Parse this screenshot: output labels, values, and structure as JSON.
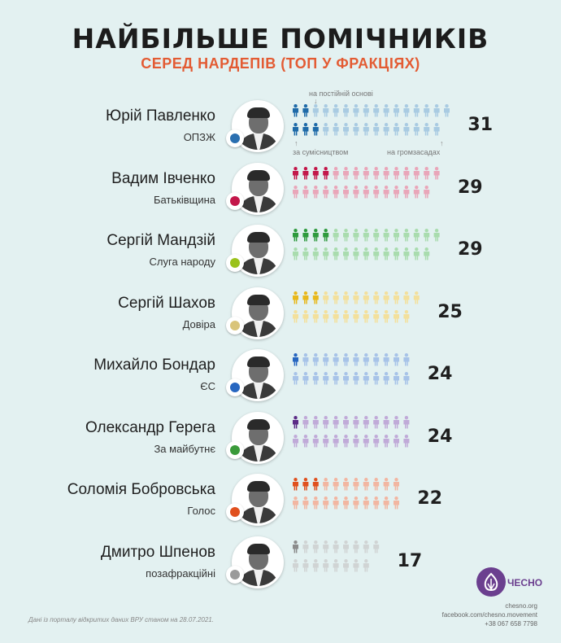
{
  "header": {
    "title": "НАЙБІЛЬШЕ ПОМІЧНИКІВ",
    "subtitle": "СЕРЕД НАРДЕПІВ (ТОП У ФРАКЦІЯХ)"
  },
  "legend": {
    "permanent": "на постійній основі",
    "part_time": "за сумісництвом",
    "voluntary": "на громзасадах"
  },
  "chart_data": {
    "type": "pictograph",
    "title": "НАЙБІЛЬШЕ ПОМІЧНИКІВ",
    "subtitle": "СЕРЕД НАРДЕПІВ (ТОП У ФРАКЦІЯХ)",
    "rows": [
      {
        "name": "Юрій Павленко",
        "faction": "ОПЗЖ",
        "total": 31,
        "permanent": 2,
        "part_time": 3,
        "color": "#1e6aa8",
        "light": "#a9cbe2",
        "badge_color": "#2a6fb0"
      },
      {
        "name": "Вадим Івченко",
        "faction": "Батьківщина",
        "total": 29,
        "permanent": 4,
        "part_time": 0,
        "color": "#c3174a",
        "light": "#e9a6b9",
        "badge_color": "#c3174a"
      },
      {
        "name": "Сергій Мандзій",
        "faction": "Слуга народу",
        "total": 29,
        "permanent": 4,
        "part_time": 0,
        "color": "#2e9a3d",
        "light": "#a9dcae",
        "badge_color": "#9ac21b"
      },
      {
        "name": "Сергій Шахов",
        "faction": "Довіра",
        "total": 25,
        "permanent": 3,
        "part_time": 0,
        "color": "#e8b81b",
        "light": "#f3e09c",
        "badge_color": "#d9c47a"
      },
      {
        "name": "Михайло Бондар",
        "faction": "ЄС",
        "total": 24,
        "permanent": 1,
        "part_time": 0,
        "color": "#2766c0",
        "light": "#a7c3e8",
        "badge_color": "#2766c0"
      },
      {
        "name": "Олександр Герега",
        "faction": "За майбутнє",
        "total": 24,
        "permanent": 1,
        "part_time": 0,
        "color": "#5b2b86",
        "light": "#c0aad8",
        "badge_color": "#3a9a3a"
      },
      {
        "name": "Соломія Бобровська",
        "faction": "Голос",
        "total": 22,
        "permanent": 3,
        "part_time": 0,
        "color": "#e0501e",
        "light": "#f2b6a1",
        "badge_color": "#e0501e"
      },
      {
        "name": "Дмитро Шпенов",
        "faction": "позафракційні",
        "total": 17,
        "permanent": 1,
        "part_time": 0,
        "color": "#8c8c8c",
        "light": "#d0d4d4",
        "badge_color": "#9a9a9a"
      }
    ]
  },
  "footer": {
    "note": "Дані із порталу відкритих даних ВРУ станом на 28.07.2021.",
    "logo_text": "ЧЕСНО",
    "site": "chesno.org",
    "facebook": "facebook.com/chesno.movement",
    "phone": "+38 067 658 7798"
  }
}
